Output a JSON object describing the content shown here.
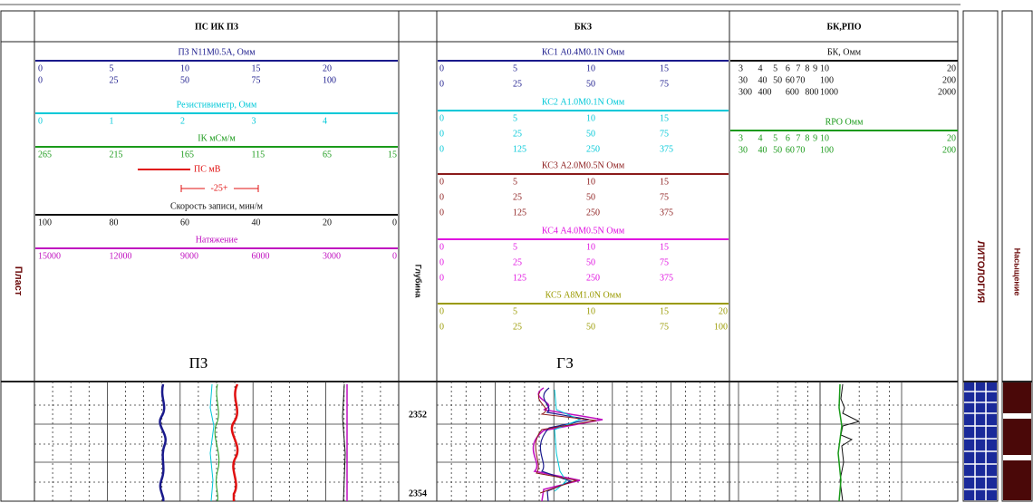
{
  "left_column": {
    "label": "Пласт"
  },
  "depth_column": {
    "label": "Глубина",
    "depths": [
      2352,
      2354
    ]
  },
  "tracks": [
    {
      "title": "ПС ИК ПЗ",
      "footer": "ПЗ",
      "groups": [
        {
          "name": "ПЗ N11M0.5A, Омм",
          "color": "#1a1a8c",
          "rows": [
            [
              0,
              5,
              10,
              15,
              20
            ],
            [
              0,
              25,
              50,
              75,
              100
            ]
          ]
        },
        {
          "name": "Резистивиметр, Омм",
          "color": "#00c8d8",
          "rows": [
            [
              0,
              1,
              2,
              3,
              4
            ]
          ]
        },
        {
          "name": "IK мСм/м",
          "color": "#1a9a1a",
          "rows": [
            [
              265,
              215,
              165,
              115,
              65,
              15
            ]
          ]
        },
        {
          "name": "ПС мВ",
          "color": "#e01010",
          "scale": "-25+",
          "rows": []
        },
        {
          "name": "Скорость записи, мин/м",
          "color": "#111111",
          "rows": [
            [
              100,
              80,
              60,
              40,
              20,
              0
            ]
          ]
        },
        {
          "name": "Натяжение",
          "color": "#c010c0",
          "rows": [
            [
              15000,
              12000,
              9000,
              6000,
              3000,
              0
            ]
          ]
        }
      ]
    },
    {
      "title": "БКЗ",
      "footer": "ГЗ",
      "groups": [
        {
          "name": "КС1   A0.4M0.1N   Омм",
          "color": "#1a1a8c",
          "rows": [
            [
              0,
              5,
              10,
              15
            ],
            [
              0,
              25,
              50,
              75
            ]
          ]
        },
        {
          "name": "КС2   A1.0M0.1N   Омм",
          "color": "#00c8d8",
          "rows": [
            [
              0,
              5,
              10,
              15
            ],
            [
              0,
              25,
              50,
              75
            ],
            [
              0,
              125,
              250,
              375
            ]
          ]
        },
        {
          "name": "КС3   A2.0M0.5N   Омм",
          "color": "#8b1a1a",
          "rows": [
            [
              0,
              5,
              10,
              15
            ],
            [
              0,
              25,
              50,
              75
            ],
            [
              0,
              125,
              250,
              375
            ]
          ]
        },
        {
          "name": "КС4   A4.0M0.5N   Омм",
          "color": "#e010e0",
          "rows": [
            [
              0,
              5,
              10,
              15
            ],
            [
              0,
              25,
              50,
              75
            ],
            [
              0,
              125,
              250,
              375
            ]
          ]
        },
        {
          "name": "КС5   A8M1.0N   Омм",
          "color": "#9a9a00",
          "rows": [
            [
              0,
              5,
              10,
              15,
              20
            ],
            [
              0,
              25,
              50,
              75,
              100
            ]
          ]
        }
      ]
    },
    {
      "title": "БК,РПО",
      "footer": null,
      "groups": [
        {
          "name": "БК, Омм",
          "color": "#111111",
          "rows": [
            [
              3,
              4,
              5,
              6,
              7,
              8,
              9,
              10,
              20
            ],
            [
              30,
              40,
              50,
              60,
              70,
              100,
              200
            ],
            [
              300,
              400,
              600,
              800,
              1000,
              2000
            ]
          ]
        },
        {
          "name": "RPO  Омм",
          "color": "#1a9a1a",
          "rows": [
            [
              3,
              4,
              5,
              6,
              7,
              8,
              9,
              10,
              20
            ],
            [
              30,
              40,
              50,
              60,
              70,
              100,
              200
            ]
          ]
        }
      ]
    }
  ],
  "lithology": {
    "label": "ЛИТОЛОГИЯ"
  },
  "saturation": {
    "label": "Насыщение"
  }
}
